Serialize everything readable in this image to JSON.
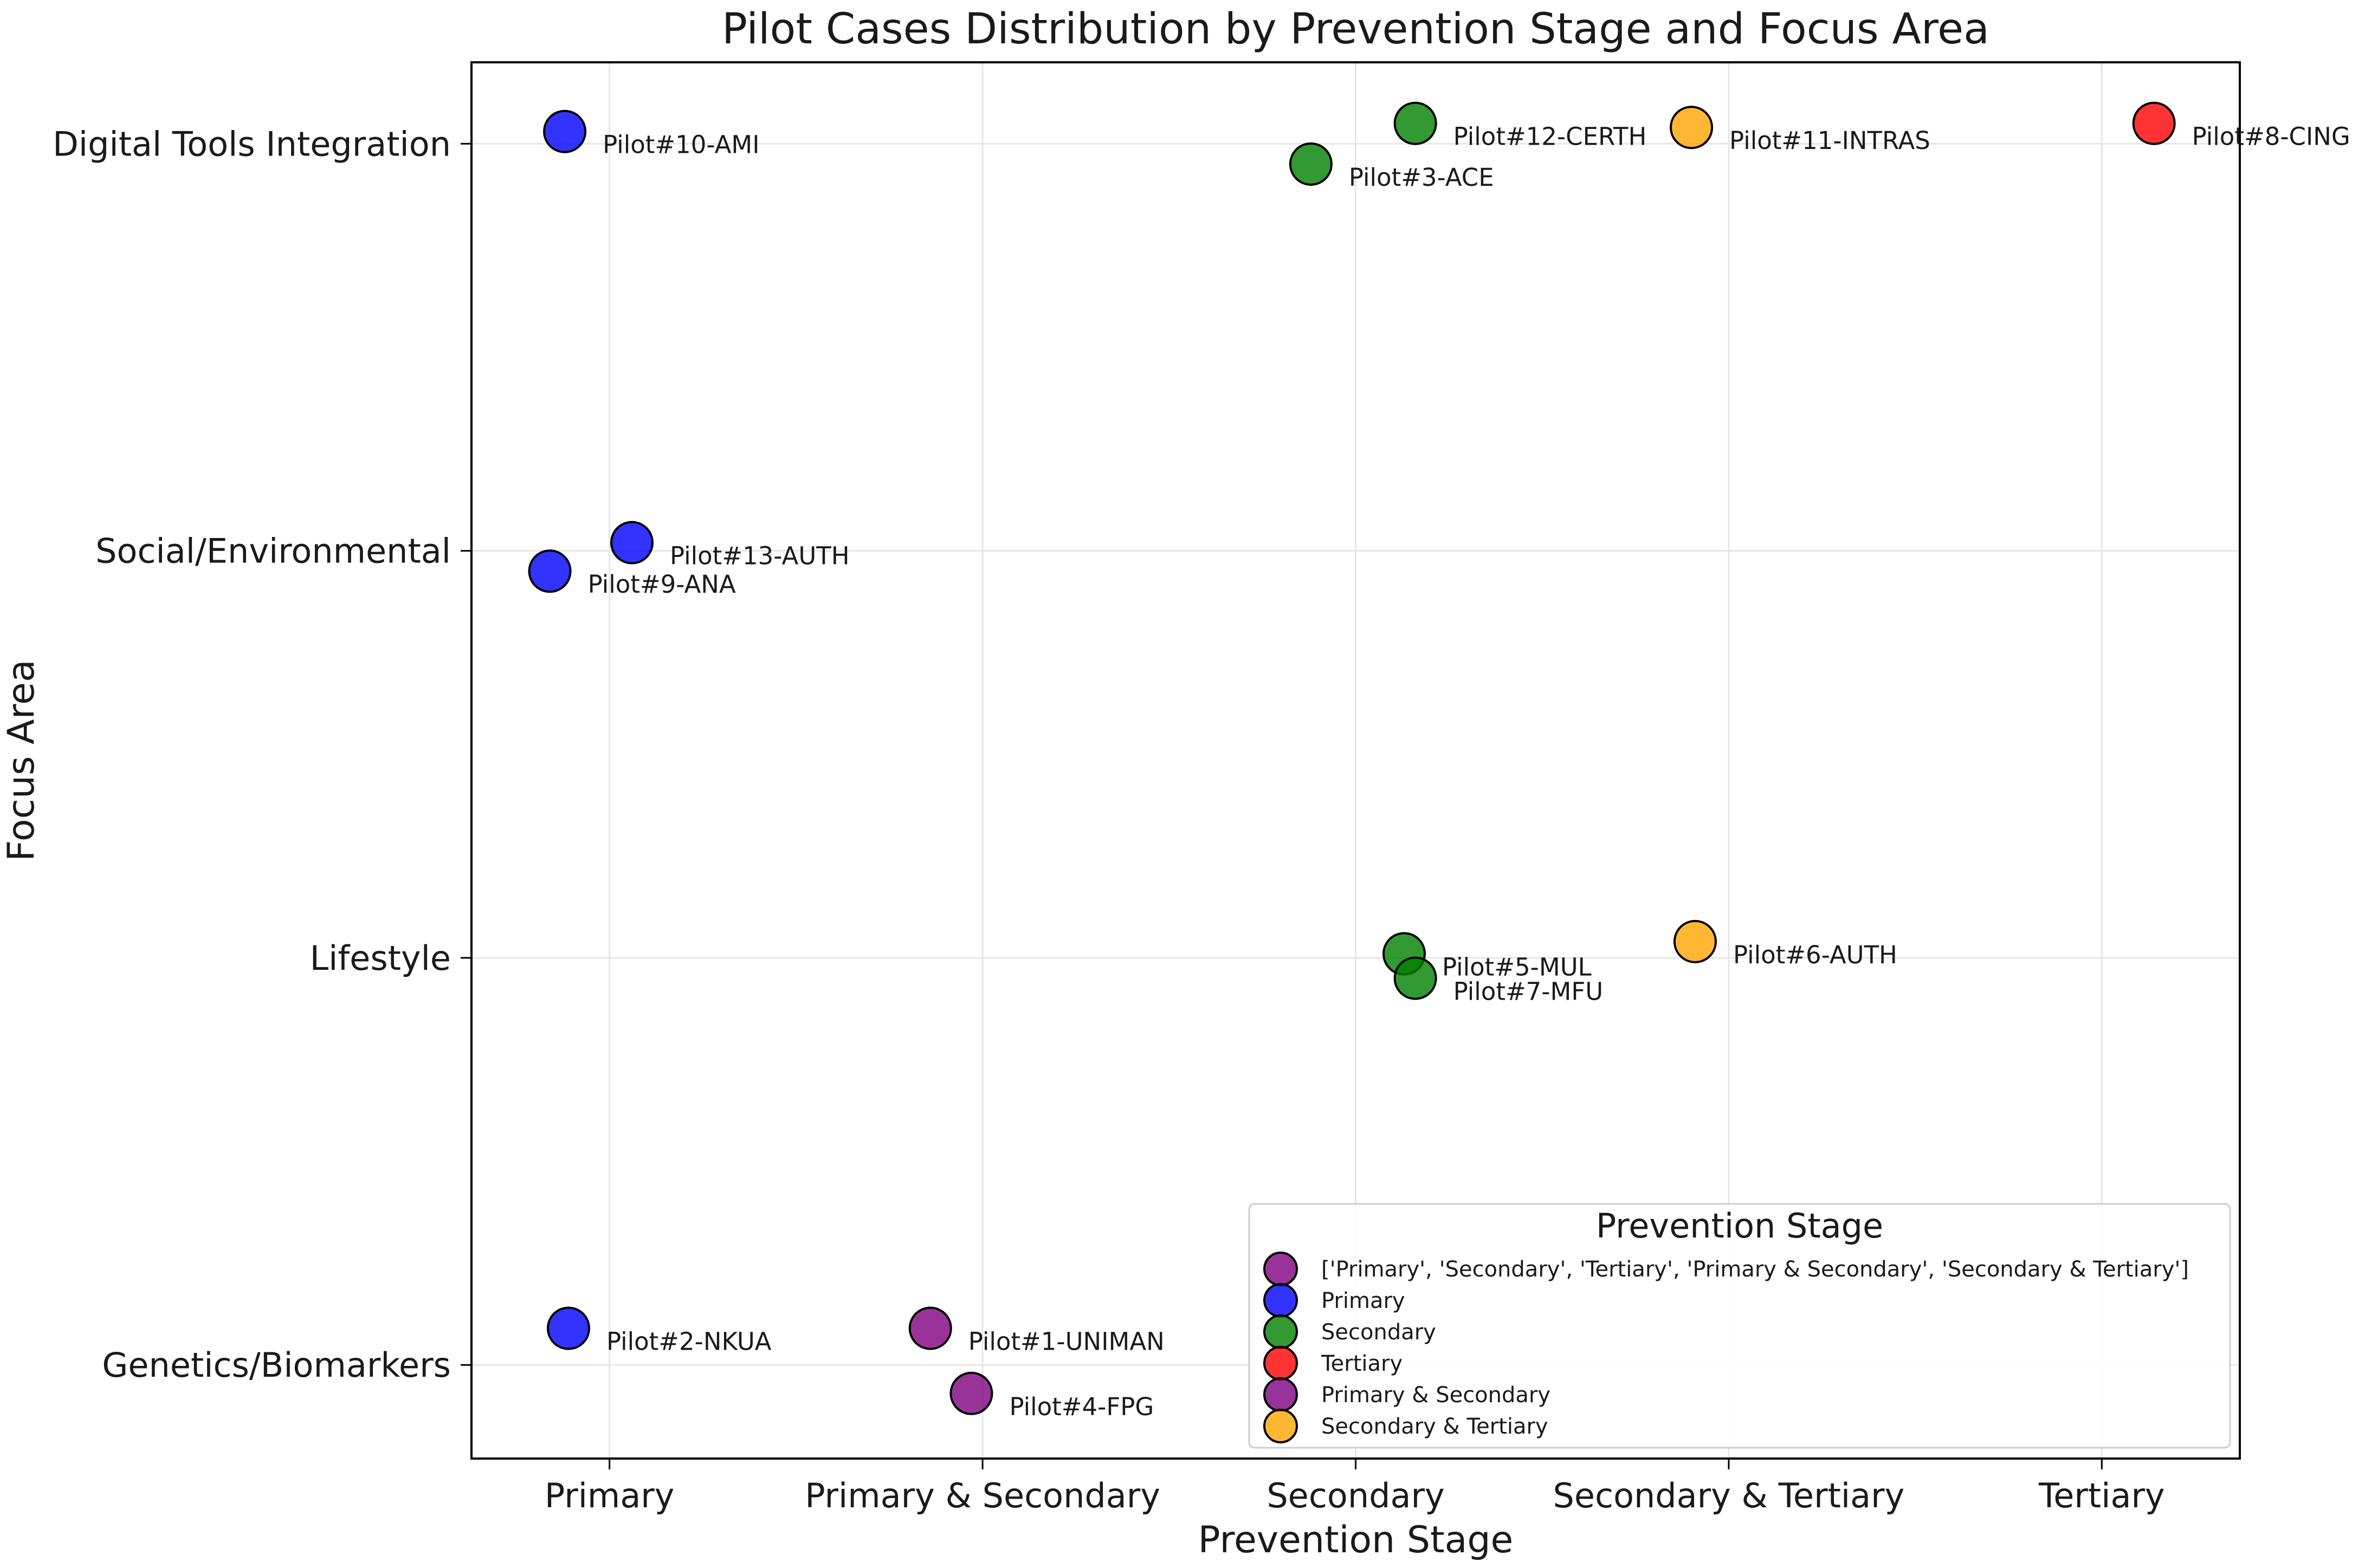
{
  "chart_data": {
    "type": "scatter",
    "title": "Pilot Cases Distribution by Prevention Stage and Focus Area",
    "xlabel": "Prevention Stage",
    "ylabel": "Focus Area",
    "x_categories": [
      "Primary",
      "Primary & Secondary",
      "Secondary",
      "Secondary & Tertiary",
      "Tertiary"
    ],
    "y_categories": [
      "Genetics/Biomarkers",
      "Lifestyle",
      "Social/Environmental",
      "Digital Tools Integration"
    ],
    "xlim": [
      -0.37,
      4.37
    ],
    "ylim": [
      -0.23,
      3.2
    ],
    "grid": true,
    "colors": {
      "Primary": "#0000ff",
      "Secondary": "#008000",
      "Tertiary": "#ff0000",
      "Primary & Secondary": "#800080",
      "Secondary & Tertiary": "#ffa500"
    },
    "legend": {
      "title": "Prevention Stage",
      "placement": "lower-right",
      "entries": [
        {
          "label": "['Primary', 'Secondary', 'Tertiary', 'Primary & Secondary', 'Secondary & Tertiary']",
          "color": "#800080"
        },
        {
          "label": "Primary",
          "color": "#0000ff"
        },
        {
          "label": "Secondary",
          "color": "#008000"
        },
        {
          "label": "Tertiary",
          "color": "#ff0000"
        },
        {
          "label": "Primary & Secondary",
          "color": "#800080"
        },
        {
          "label": "Secondary & Tertiary",
          "color": "#ffa500"
        }
      ]
    },
    "points": [
      {
        "label": "Pilot#10-AMI",
        "x": -0.12,
        "y": 3.03,
        "stage": "Primary"
      },
      {
        "label": "Pilot#12-CERTH",
        "x": 2.16,
        "y": 3.05,
        "stage": "Secondary"
      },
      {
        "label": "Pilot#3-ACE",
        "x": 1.88,
        "y": 2.95,
        "stage": "Secondary"
      },
      {
        "label": "Pilot#11-INTRAS",
        "x": 2.9,
        "y": 3.04,
        "stage": "Secondary & Tertiary"
      },
      {
        "label": "Pilot#8-CING",
        "x": 4.14,
        "y": 3.05,
        "stage": "Tertiary"
      },
      {
        "label": "Pilot#13-AUTH",
        "x": 0.06,
        "y": 2.02,
        "stage": "Primary"
      },
      {
        "label": "Pilot#9-ANA",
        "x": -0.16,
        "y": 1.95,
        "stage": "Primary"
      },
      {
        "label": "Pilot#5-MUL",
        "x": 2.13,
        "y": 1.01,
        "stage": "Secondary"
      },
      {
        "label": "Pilot#7-MFU",
        "x": 2.16,
        "y": 0.95,
        "stage": "Secondary"
      },
      {
        "label": "Pilot#6-AUTH",
        "x": 2.91,
        "y": 1.04,
        "stage": "Secondary & Tertiary"
      },
      {
        "label": "Pilot#2-NKUA",
        "x": -0.11,
        "y": 0.09,
        "stage": "Primary"
      },
      {
        "label": "Pilot#1-UNIMAN",
        "x": 0.86,
        "y": 0.09,
        "stage": "Primary & Secondary"
      },
      {
        "label": "Pilot#4-FPG",
        "x": 0.97,
        "y": -0.07,
        "stage": "Primary & Secondary"
      }
    ]
  }
}
